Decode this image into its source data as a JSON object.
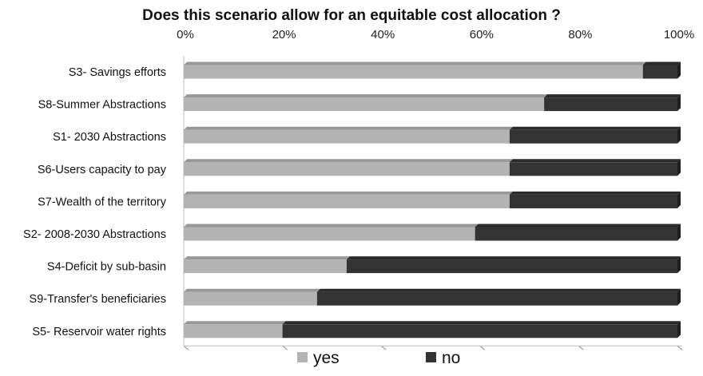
{
  "chart_data": {
    "type": "bar",
    "orientation": "horizontal",
    "stacked": true,
    "percent": true,
    "title": "Does this scenario allow for an equitable cost allocation ?",
    "categories": [
      "S3- Savings efforts",
      "S8-Summer Abstractions",
      "S1- 2030 Abstractions",
      "S6-Users capacity to pay",
      "S7-Wealth of the territory",
      "S2- 2008-2030 Abstractions",
      "S4-Deficit by sub-basin",
      "S9-Transfer's beneficiaries",
      "S5- Reservoir water rights"
    ],
    "series": [
      {
        "name": "yes",
        "color": "#b3b3b3",
        "values": [
          93,
          73,
          66,
          66,
          66,
          59,
          33,
          27,
          20
        ]
      },
      {
        "name": "no",
        "color": "#333333",
        "values": [
          7,
          27,
          34,
          34,
          34,
          41,
          67,
          73,
          80
        ]
      }
    ],
    "x_ticks": [
      "0%",
      "20%",
      "40%",
      "60%",
      "80%",
      "100%"
    ],
    "xlim": [
      0,
      100
    ],
    "x_axis_position": "top",
    "grid": false,
    "legend_position": "bottom-center"
  }
}
